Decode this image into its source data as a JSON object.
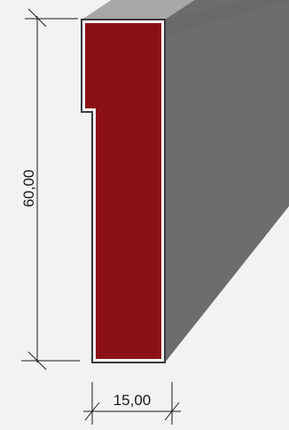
{
  "drawing": {
    "height_dimension": "60,00",
    "width_dimension": "15,00"
  },
  "colors": {
    "background": "#f2f2f2",
    "profile_section": "#8b1116",
    "profile_edge": "#f5f5f5",
    "profile_outline": "#3a3a3a",
    "extrusion_top": "#a4a4a4",
    "extrusion_side": "#6d6d6d",
    "dimension_lines": "#1a1a1a"
  }
}
